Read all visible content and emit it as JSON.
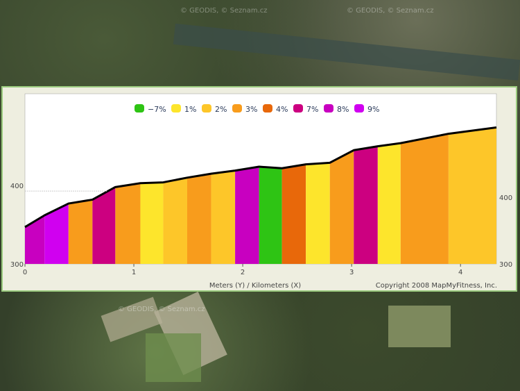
{
  "map": {
    "watermark": "© GEODIS, © Seznam.cz"
  },
  "chart_data": {
    "type": "area",
    "xlabel": "Meters (Y) / Kilometers (X)",
    "copyright": "Copyright 2008 MapMyFitness, Inc.",
    "xlim": [
      0,
      4.33
    ],
    "ylim": [
      300,
      517
    ],
    "xticks": [
      0,
      1,
      2,
      3,
      4
    ],
    "yticks_left": [
      300,
      400
    ],
    "yticks_right": [
      "400",
      "300"
    ],
    "legend": [
      {
        "label": "-7%",
        "color": "#2ec414"
      },
      {
        "label": "1%",
        "color": "#fde52c"
      },
      {
        "label": "2%",
        "color": "#fdc629"
      },
      {
        "label": "3%",
        "color": "#f89c1c"
      },
      {
        "label": "4%",
        "color": "#e8680a"
      },
      {
        "label": "7%",
        "color": "#cc0080"
      },
      {
        "label": "8%",
        "color": "#c800c0"
      },
      {
        "label": "9%",
        "color": "#d000f0"
      }
    ],
    "profile_km": [
      0,
      0.18,
      0.4,
      0.62,
      0.83,
      1.06,
      1.27,
      1.49,
      1.71,
      1.93,
      2.15,
      2.36,
      2.58,
      2.8,
      3.02,
      3.24,
      3.45,
      3.89,
      4.33
    ],
    "profile_m": [
      347,
      362,
      377,
      382,
      398,
      403,
      404,
      410,
      415,
      419,
      424,
      422,
      427,
      429,
      445,
      450,
      454,
      466,
      474
    ],
    "segment_grades": [
      "8%",
      "9%",
      "3%",
      "7%",
      "3%",
      "1%",
      "2%",
      "3%",
      "2%",
      "8%",
      "-7%",
      "4%",
      "1%",
      "3%",
      "7%",
      "1%",
      "3%",
      "2%"
    ]
  }
}
